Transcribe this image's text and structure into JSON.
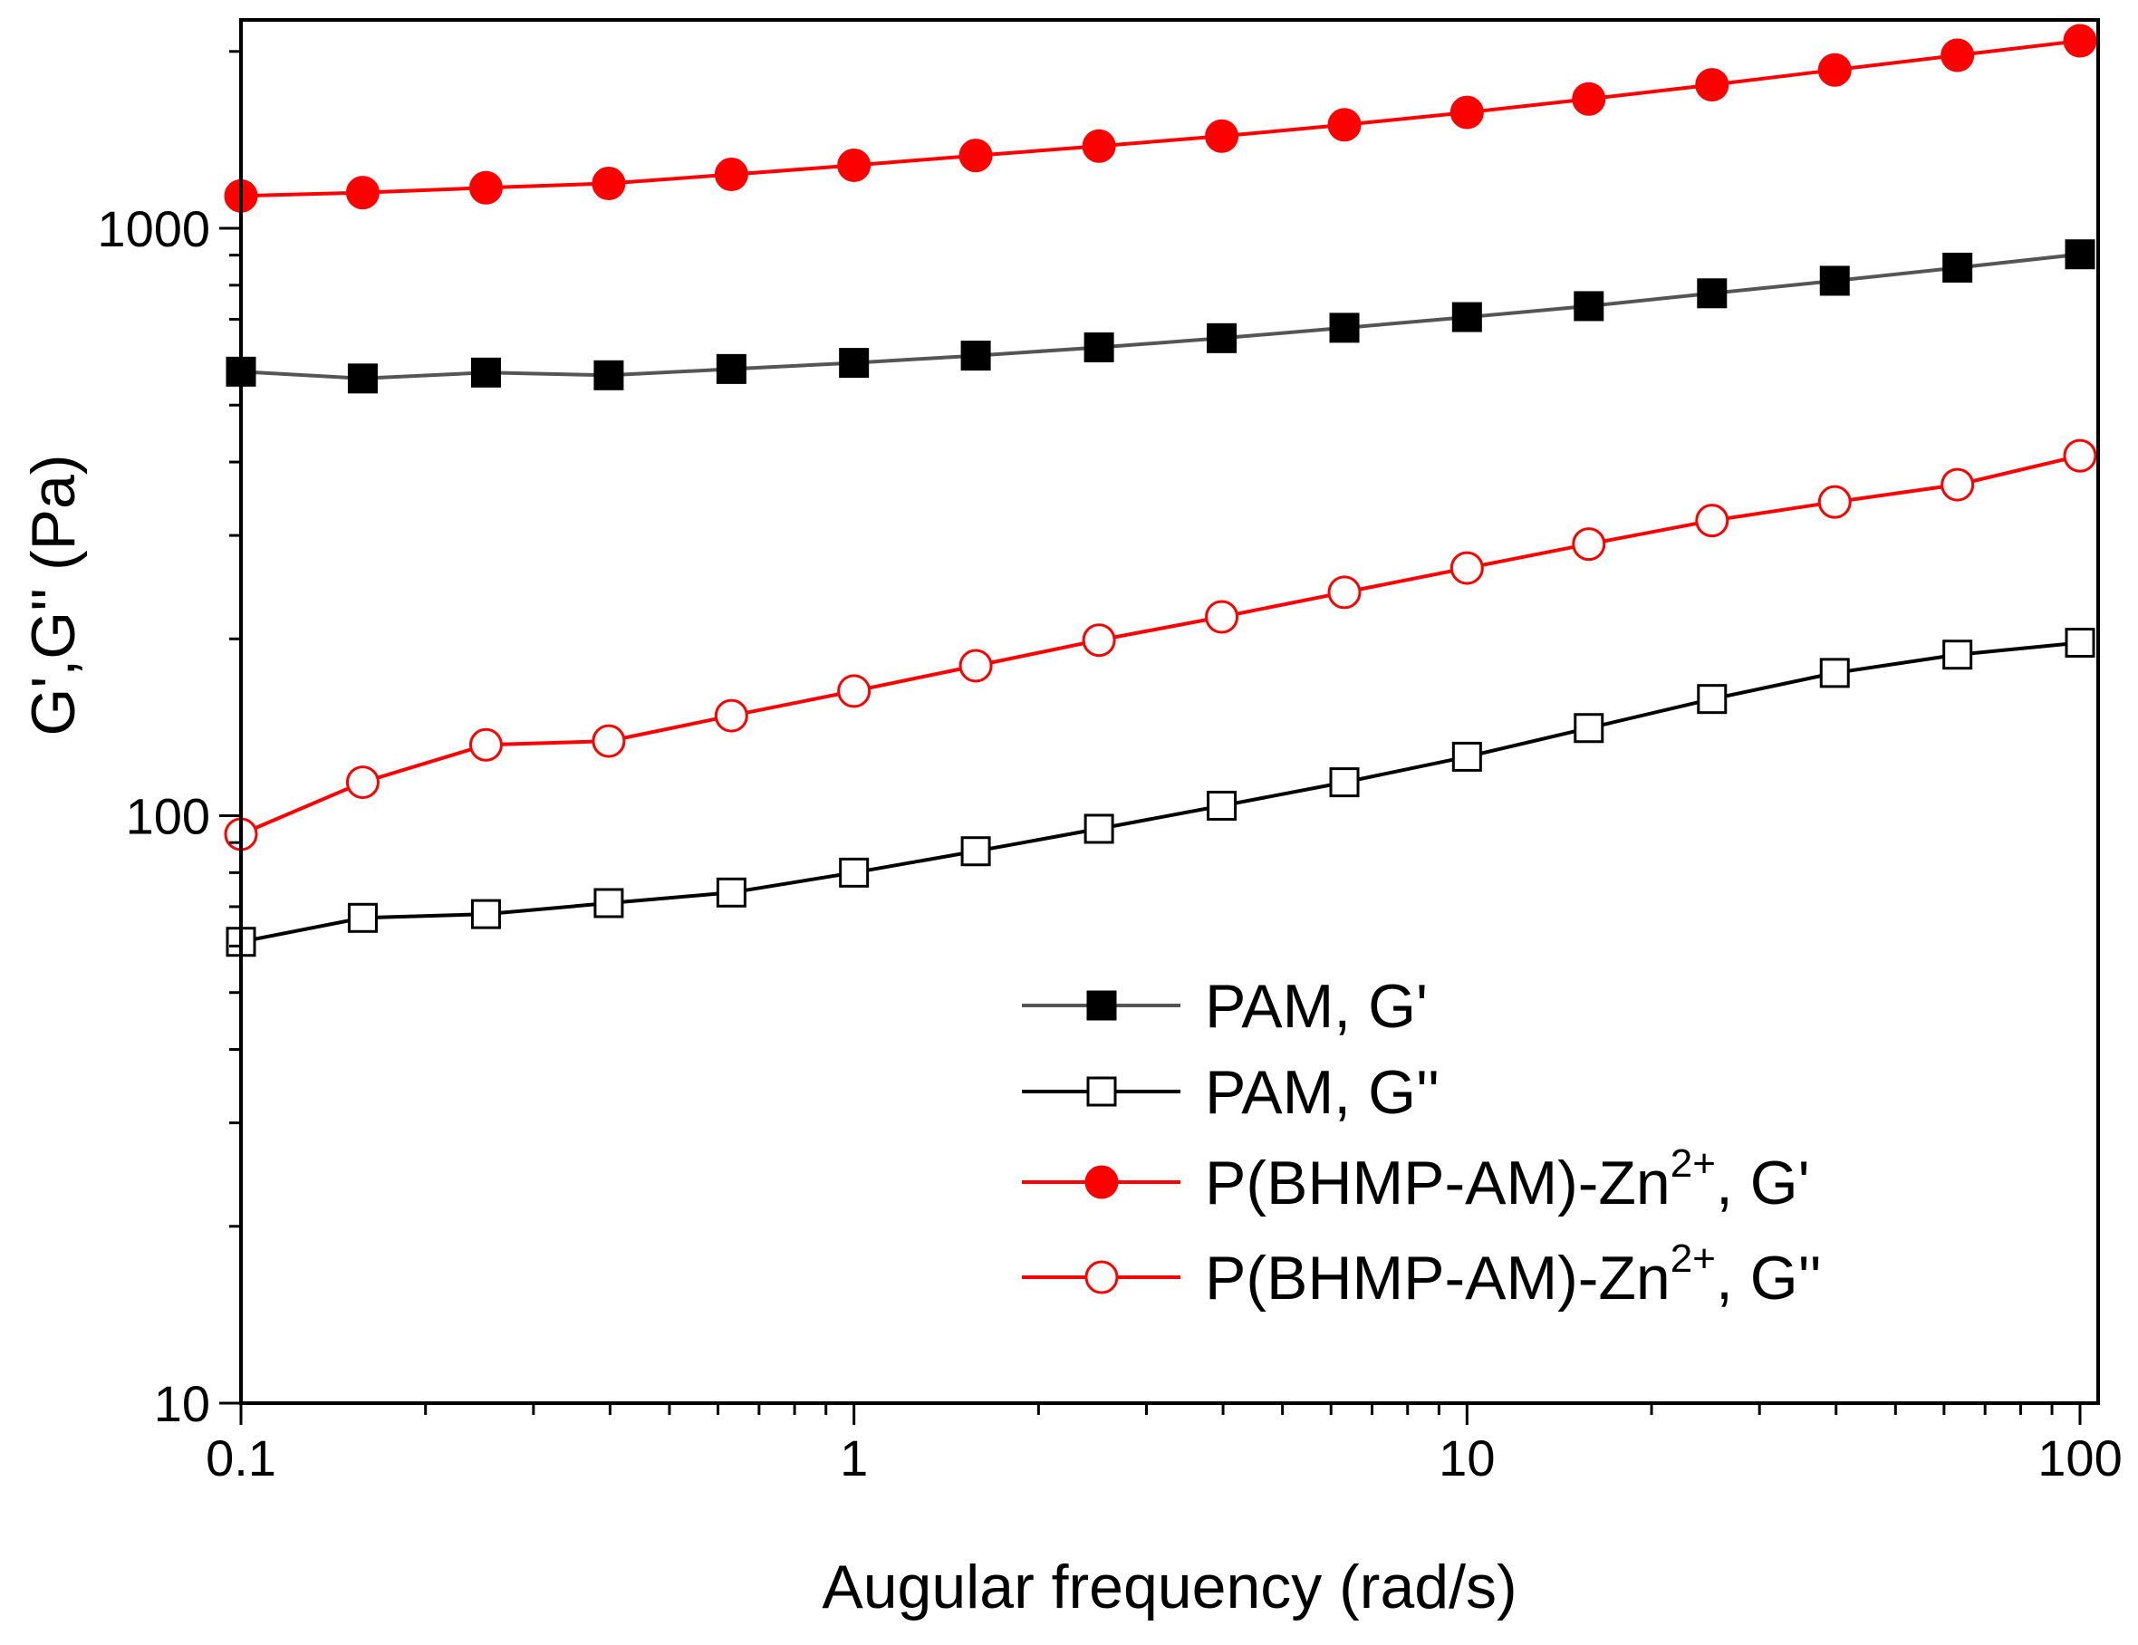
{
  "chart_data": {
    "type": "line",
    "xlabel": "Augular frequency (rad/s)",
    "ylabel": "G',G'' (Pa)",
    "xscale": "log",
    "yscale": "log",
    "xlim": [
      0.1,
      100
    ],
    "ylim": [
      10,
      2300
    ],
    "grid": false,
    "legend_position": "bottom-right",
    "x_ticks": [
      {
        "value": 0.1,
        "label": "0.1"
      },
      {
        "value": 1,
        "label": "1"
      },
      {
        "value": 10,
        "label": "10"
      },
      {
        "value": 100,
        "label": "100"
      }
    ],
    "y_ticks": [
      {
        "value": 10,
        "label": "10"
      },
      {
        "value": 100,
        "label": "100"
      },
      {
        "value": 1000,
        "label": "1000"
      }
    ],
    "x": [
      0.1,
      0.158,
      0.251,
      0.398,
      0.631,
      1.0,
      1.58,
      2.51,
      3.98,
      6.31,
      10.0,
      15.8,
      25.1,
      39.8,
      63.1,
      100
    ],
    "series": [
      {
        "name": "PAM, G'",
        "legend_main": "PAM, G'",
        "legend_sup": "",
        "legend_suffix": "",
        "color": "#000000",
        "line_color": "#555555",
        "marker": "square",
        "filled": true,
        "values": [
          570,
          555,
          568,
          562,
          576,
          590,
          607,
          627,
          650,
          677,
          706,
          737,
          775,
          814,
          857,
          903
        ]
      },
      {
        "name": "PAM, G''",
        "legend_main": "PAM, G''",
        "legend_sup": "",
        "legend_suffix": "",
        "color": "#000000",
        "line_color": "#000000",
        "marker": "square",
        "filled": false,
        "values": [
          61,
          67,
          68,
          71,
          74,
          80,
          87,
          95,
          104,
          114,
          126,
          141,
          158,
          175,
          188,
          197
        ]
      },
      {
        "name": "P(BHMP-AM)-Zn2+, G'",
        "legend_main": "P(BHMP-AM)-Zn",
        "legend_sup": "2+",
        "legend_suffix": ", G'",
        "color": "#ff0000",
        "line_color": "#ff0000",
        "marker": "circle",
        "filled": true,
        "values": [
          1135,
          1150,
          1172,
          1192,
          1235,
          1280,
          1330,
          1380,
          1435,
          1500,
          1575,
          1660,
          1755,
          1860,
          1970,
          2085
        ]
      },
      {
        "name": "P(BHMP-AM)-Zn2+, G''",
        "legend_main": "P(BHMP-AM)-Zn",
        "legend_sup": "2+",
        "legend_suffix": ", G''",
        "color": "#ff0000",
        "line_color": "#ff0000",
        "marker": "circle",
        "filled": false,
        "values": [
          93,
          114,
          132,
          134,
          148,
          163,
          180,
          199,
          218,
          240,
          264,
          290,
          318,
          342,
          366,
          410
        ]
      }
    ]
  }
}
